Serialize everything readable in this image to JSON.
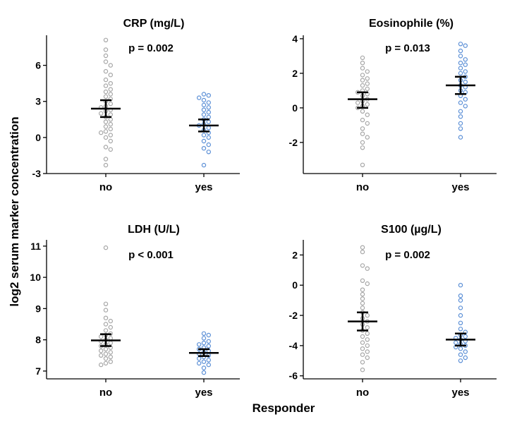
{
  "figure": {
    "ylabel": "log2 serum marker concentration",
    "xlabel": "Responder",
    "group_colors": {
      "no": "#a6a6a6",
      "yes": "#5b8fd6"
    }
  },
  "chart_data": [
    {
      "type": "scatter",
      "title": "CRP (mg/L)",
      "annotation": "p = 0.002",
      "categories": [
        "no",
        "yes"
      ],
      "ylim": [
        -3,
        8.5
      ],
      "yticks": [
        -3,
        0,
        3,
        6
      ],
      "series": [
        {
          "name": "no",
          "values": [
            8.1,
            7.3,
            6.8,
            6.3,
            6.0,
            5.5,
            5.2,
            4.8,
            4.5,
            4.3,
            4.0,
            3.8,
            3.6,
            3.4,
            3.2,
            3.0,
            2.8,
            2.6,
            2.5,
            2.3,
            2.2,
            2.0,
            1.9,
            1.7,
            1.5,
            1.3,
            1.1,
            0.9,
            0.7,
            0.5,
            0.4,
            0.2,
            0.0,
            -0.3,
            -0.8,
            -1.0,
            -1.8,
            -2.3
          ],
          "mean": 2.4,
          "ci": [
            1.7,
            3.1
          ]
        },
        {
          "name": "yes",
          "values": [
            3.6,
            3.5,
            3.3,
            3.1,
            2.9,
            2.7,
            2.5,
            2.3,
            2.1,
            1.9,
            1.7,
            1.5,
            1.3,
            1.1,
            1.0,
            0.8,
            0.6,
            0.4,
            0.2,
            0.0,
            -0.3,
            -0.6,
            -0.9,
            -1.2,
            -2.3
          ],
          "mean": 1.0,
          "ci": [
            0.5,
            1.5
          ]
        }
      ]
    },
    {
      "type": "scatter",
      "title": "Eosinophile (%)",
      "annotation": "p = 0.013",
      "categories": [
        "no",
        "yes"
      ],
      "ylim": [
        -3.8,
        4.2
      ],
      "yticks": [
        -2,
        0,
        2,
        4
      ],
      "series": [
        {
          "name": "no",
          "values": [
            2.9,
            2.6,
            2.3,
            2.1,
            1.9,
            1.7,
            1.6,
            1.4,
            1.3,
            1.1,
            1.0,
            0.9,
            0.8,
            0.7,
            0.5,
            0.4,
            0.3,
            0.2,
            0.1,
            0.0,
            -0.2,
            -0.4,
            -0.7,
            -0.9,
            -1.2,
            -1.5,
            -1.7,
            -2.0,
            -2.3,
            -3.3
          ],
          "mean": 0.5,
          "ci": [
            0.0,
            0.9
          ]
        },
        {
          "name": "yes",
          "values": [
            3.7,
            3.6,
            3.3,
            3.0,
            2.8,
            2.6,
            2.5,
            2.3,
            2.1,
            2.0,
            1.8,
            1.6,
            1.5,
            1.3,
            1.2,
            1.0,
            0.9,
            0.7,
            0.5,
            0.3,
            0.1,
            -0.2,
            -0.5,
            -0.9,
            -1.2,
            -1.7
          ],
          "mean": 1.3,
          "ci": [
            0.8,
            1.8
          ]
        }
      ]
    },
    {
      "type": "scatter",
      "title": "LDH (U/L)",
      "annotation": "p < 0.001",
      "categories": [
        "no",
        "yes"
      ],
      "ylim": [
        6.75,
        11.2
      ],
      "yticks": [
        7,
        8,
        9,
        10,
        11
      ],
      "series": [
        {
          "name": "no",
          "values": [
            10.95,
            9.15,
            8.95,
            8.7,
            8.6,
            8.5,
            8.4,
            8.3,
            8.2,
            8.15,
            8.1,
            8.05,
            8.0,
            7.95,
            7.9,
            7.85,
            7.8,
            7.75,
            7.7,
            7.65,
            7.6,
            7.55,
            7.5,
            7.45,
            7.4,
            7.3,
            7.25,
            7.2
          ],
          "mean": 7.98,
          "ci": [
            7.8,
            8.18
          ]
        },
        {
          "name": "yes",
          "values": [
            8.2,
            8.15,
            8.05,
            7.95,
            7.9,
            7.85,
            7.8,
            7.75,
            7.7,
            7.65,
            7.6,
            7.55,
            7.5,
            7.45,
            7.4,
            7.35,
            7.3,
            7.25,
            7.2,
            7.1,
            6.95
          ],
          "mean": 7.58,
          "ci": [
            7.48,
            7.7
          ]
        }
      ]
    },
    {
      "type": "scatter",
      "title": "S100 (µg/L)",
      "annotation": "p = 0.002",
      "categories": [
        "no",
        "yes"
      ],
      "ylim": [
        -6.2,
        3.0
      ],
      "yticks": [
        -6,
        -4,
        -2,
        0,
        2
      ],
      "series": [
        {
          "name": "no",
          "values": [
            2.5,
            2.2,
            1.3,
            1.1,
            0.3,
            0.1,
            -0.3,
            -0.6,
            -0.9,
            -1.2,
            -1.5,
            -1.8,
            -2.0,
            -2.2,
            -2.4,
            -2.6,
            -2.8,
            -3.0,
            -3.2,
            -3.4,
            -3.6,
            -3.8,
            -4.0,
            -4.2,
            -4.4,
            -4.6,
            -4.8,
            -5.1,
            -5.6
          ],
          "mean": -2.4,
          "ci": [
            -3.0,
            -1.8
          ]
        },
        {
          "name": "yes",
          "values": [
            0.0,
            -0.7,
            -1.0,
            -1.5,
            -2.0,
            -2.5,
            -2.9,
            -3.1,
            -3.3,
            -3.4,
            -3.5,
            -3.6,
            -3.7,
            -3.8,
            -3.9,
            -4.0,
            -4.1,
            -4.2,
            -4.4,
            -4.6,
            -4.8,
            -5.0
          ],
          "mean": -3.6,
          "ci": [
            -4.0,
            -3.2
          ]
        }
      ]
    }
  ]
}
